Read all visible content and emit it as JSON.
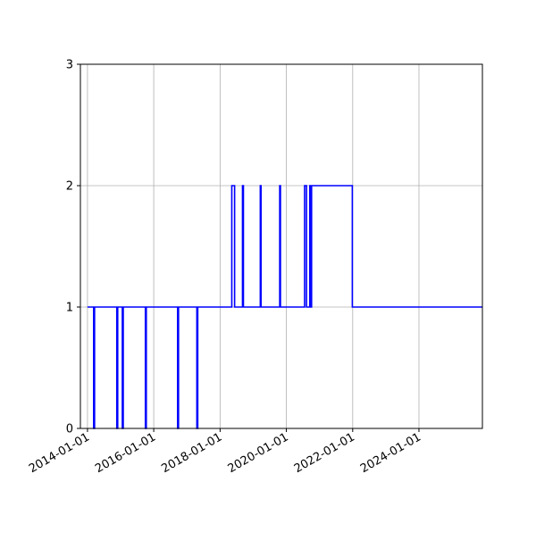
{
  "chart_data": {
    "type": "line",
    "title": "",
    "xlabel": "",
    "ylabel": "",
    "x_axis_type": "date",
    "xlim": [
      "2013-10-15",
      "2025-11-30"
    ],
    "ylim": [
      0,
      3
    ],
    "grid": true,
    "legend": "none",
    "series_color": "#0000ff",
    "x_tick_labels": [
      "2014-01-01",
      "2016-01-01",
      "2018-01-01",
      "2020-01-01",
      "2022-01-01",
      "2024-01-01"
    ],
    "y_tick_labels": [
      "0",
      "1",
      "2",
      "3"
    ],
    "series": [
      {
        "x": [
          "2014-01-01",
          "2014-03-10",
          "2014-03-10",
          "2014-03-20",
          "2014-03-20",
          "2014-11-20",
          "2014-11-20",
          "2014-11-30",
          "2014-11-30",
          "2015-01-20",
          "2015-01-20",
          "2015-01-30",
          "2015-01-30",
          "2015-10-01",
          "2015-10-01",
          "2015-10-11",
          "2015-10-11",
          "2016-09-20",
          "2016-09-20",
          "2016-09-30",
          "2016-09-30",
          "2017-04-20",
          "2017-04-20",
          "2017-04-30",
          "2017-04-30",
          "2018-05-10",
          "2018-05-10",
          "2018-06-10",
          "2018-06-10",
          "2018-09-05",
          "2018-09-05",
          "2018-09-15",
          "2018-09-15",
          "2019-03-20",
          "2019-03-20",
          "2019-03-28",
          "2019-03-28",
          "2019-10-20",
          "2019-10-20",
          "2019-10-28",
          "2019-10-28",
          "2020-07-20",
          "2020-07-20",
          "2020-08-10",
          "2020-08-10",
          "2020-09-15",
          "2020-09-15",
          "2020-09-25",
          "2020-09-25",
          "2020-10-05",
          "2020-10-05",
          "2021-12-28",
          "2021-12-28",
          "2025-11-30"
        ],
        "y": [
          1,
          1,
          0,
          0,
          1,
          1,
          0,
          0,
          1,
          1,
          0,
          0,
          1,
          1,
          0,
          0,
          1,
          1,
          0,
          0,
          1,
          1,
          0,
          0,
          1,
          1,
          2,
          2,
          1,
          1,
          2,
          2,
          1,
          1,
          2,
          2,
          1,
          1,
          2,
          2,
          1,
          1,
          2,
          2,
          1,
          1,
          2,
          2,
          1,
          1,
          2,
          2,
          1,
          1
        ]
      }
    ]
  }
}
